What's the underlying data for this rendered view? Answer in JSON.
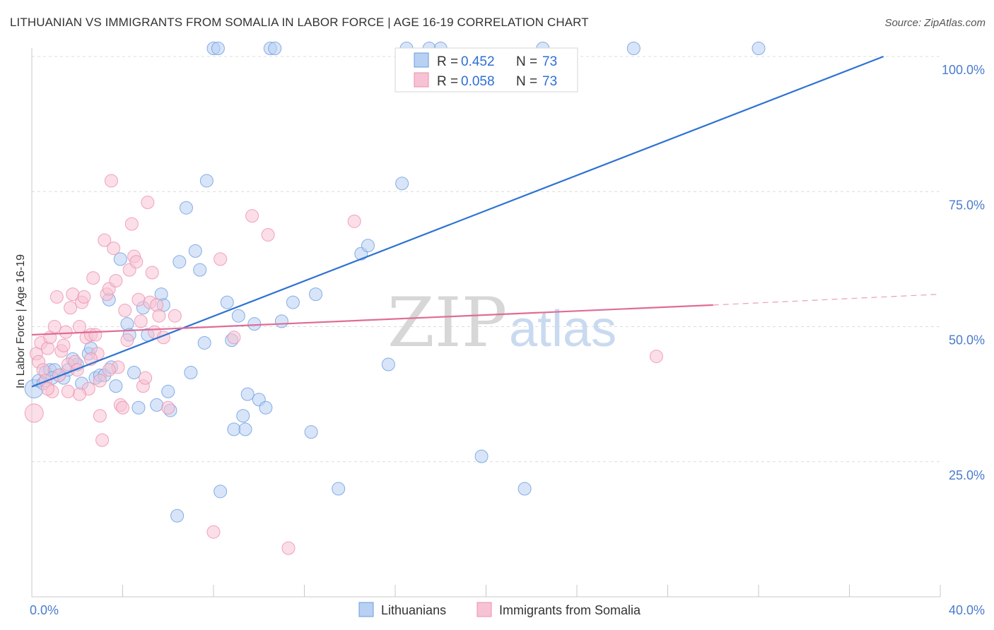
{
  "title": "LITHUANIAN VS IMMIGRANTS FROM SOMALIA IN LABOR FORCE | AGE 16-19 CORRELATION CHART",
  "source": "Source: ZipAtlas.com",
  "chart_data": {
    "type": "scatter",
    "ylabel": "In Labor Force | Age 16-19",
    "xlim": [
      0,
      40
    ],
    "ylim": [
      0,
      105
    ],
    "x_tick_labels": [
      {
        "value": 0,
        "label": "0.0%"
      },
      {
        "value": 40,
        "label": "40.0%"
      }
    ],
    "y_tick_labels": [
      {
        "value": 25,
        "label": "25.0%"
      },
      {
        "value": 50,
        "label": "50.0%"
      },
      {
        "value": 75,
        "label": "75.0%"
      },
      {
        "value": 100,
        "label": "100.0%"
      }
    ],
    "legend": [
      {
        "r_label": "R = ",
        "r_value": "0.452",
        "n_label": "N = ",
        "n_value": "73"
      },
      {
        "r_label": "R = ",
        "r_value": "0.058",
        "n_label": "N = ",
        "n_value": "73"
      }
    ],
    "watermark": {
      "zip": "ZIP",
      "atlas": "atlas"
    },
    "series": [
      {
        "name": "Lithuanians",
        "color": "#6a9be0",
        "fill": "#b8d0f2",
        "trend": {
          "x": [
            0,
            37.5
          ],
          "y": [
            38.9,
            100
          ]
        },
        "points": [
          [
            0.1,
            38.5
          ],
          [
            0.3,
            40
          ],
          [
            0.5,
            39.5
          ],
          [
            0.6,
            41.5
          ],
          [
            0.8,
            42
          ],
          [
            1.0,
            42
          ],
          [
            1.2,
            41
          ],
          [
            1.4,
            40.5
          ],
          [
            1.6,
            42
          ],
          [
            2.0,
            43
          ],
          [
            2.2,
            39.5
          ],
          [
            2.5,
            45
          ],
          [
            2.6,
            46
          ],
          [
            2.8,
            40.5
          ],
          [
            3.0,
            41
          ],
          [
            3.2,
            41
          ],
          [
            3.4,
            55
          ],
          [
            3.5,
            42.5
          ],
          [
            3.7,
            39
          ],
          [
            3.9,
            62.5
          ],
          [
            4.2,
            50.5
          ],
          [
            4.3,
            48.5
          ],
          [
            4.5,
            41.5
          ],
          [
            4.7,
            35
          ],
          [
            4.9,
            53.5
          ],
          [
            5.1,
            48.5
          ],
          [
            5.5,
            35.5
          ],
          [
            5.7,
            56
          ],
          [
            5.8,
            54
          ],
          [
            6.0,
            38
          ],
          [
            6.1,
            34.5
          ],
          [
            6.5,
            62
          ],
          [
            6.8,
            72
          ],
          [
            7.0,
            41.5
          ],
          [
            7.2,
            64
          ],
          [
            7.4,
            60.5
          ],
          [
            7.6,
            47
          ],
          [
            7.7,
            77
          ],
          [
            8.0,
            101.5
          ],
          [
            8.2,
            101.5
          ],
          [
            8.3,
            19.5
          ],
          [
            8.6,
            54.5
          ],
          [
            8.8,
            47.5
          ],
          [
            8.9,
            31
          ],
          [
            9.1,
            52
          ],
          [
            9.3,
            33.5
          ],
          [
            9.4,
            31
          ],
          [
            9.5,
            37.5
          ],
          [
            9.8,
            50.5
          ],
          [
            10.0,
            36.5
          ],
          [
            10.3,
            35
          ],
          [
            10.5,
            101.5
          ],
          [
            10.7,
            101.5
          ],
          [
            11.0,
            51
          ],
          [
            11.5,
            54.5
          ],
          [
            12.3,
            30.5
          ],
          [
            12.5,
            56
          ],
          [
            13.5,
            20
          ],
          [
            14.5,
            63.5
          ],
          [
            14.8,
            65
          ],
          [
            15.7,
            43
          ],
          [
            16.3,
            76.5
          ],
          [
            16.5,
            101.5
          ],
          [
            17.5,
            101.5
          ],
          [
            18.0,
            101.5
          ],
          [
            19.8,
            26
          ],
          [
            21.7,
            20
          ],
          [
            22.5,
            101.5
          ],
          [
            26.5,
            101.5
          ],
          [
            32.0,
            101.5
          ],
          [
            6.4,
            15
          ],
          [
            1.8,
            44
          ],
          [
            0.9,
            40.5
          ]
        ]
      },
      {
        "name": "Immigrants from Somalia",
        "color": "#ec8fad",
        "fill": "#f7c3d4",
        "trend": {
          "x": [
            0,
            30
          ],
          "y": [
            48.5,
            54
          ]
        },
        "trend_dashed": {
          "x": [
            30,
            40
          ],
          "y": [
            54,
            56
          ]
        },
        "points": [
          [
            0.1,
            34
          ],
          [
            0.2,
            45
          ],
          [
            0.3,
            43.5
          ],
          [
            0.4,
            47
          ],
          [
            0.5,
            42
          ],
          [
            0.6,
            40
          ],
          [
            0.7,
            46
          ],
          [
            0.8,
            48
          ],
          [
            0.9,
            38
          ],
          [
            1.0,
            50
          ],
          [
            1.1,
            55.5
          ],
          [
            1.2,
            41
          ],
          [
            1.3,
            45.5
          ],
          [
            1.4,
            46.5
          ],
          [
            1.5,
            49
          ],
          [
            1.6,
            43
          ],
          [
            1.7,
            53.5
          ],
          [
            1.8,
            56
          ],
          [
            1.9,
            43.5
          ],
          [
            2.0,
            42
          ],
          [
            2.1,
            50
          ],
          [
            2.2,
            54.5
          ],
          [
            2.3,
            55.5
          ],
          [
            2.4,
            48
          ],
          [
            2.5,
            38.5
          ],
          [
            2.6,
            48.5
          ],
          [
            2.7,
            59
          ],
          [
            2.8,
            48.5
          ],
          [
            2.9,
            45
          ],
          [
            3.0,
            33.5
          ],
          [
            3.1,
            29
          ],
          [
            3.2,
            66
          ],
          [
            3.3,
            56
          ],
          [
            3.4,
            57
          ],
          [
            3.5,
            77
          ],
          [
            3.6,
            64.5
          ],
          [
            3.7,
            58.5
          ],
          [
            3.8,
            42.5
          ],
          [
            3.9,
            35.5
          ],
          [
            4.0,
            35
          ],
          [
            4.1,
            53
          ],
          [
            4.2,
            47.5
          ],
          [
            4.3,
            60.5
          ],
          [
            4.4,
            69
          ],
          [
            4.5,
            63
          ],
          [
            4.6,
            62
          ],
          [
            4.7,
            55
          ],
          [
            4.8,
            51
          ],
          [
            4.9,
            39
          ],
          [
            5.0,
            40.5
          ],
          [
            5.1,
            73
          ],
          [
            5.2,
            54.5
          ],
          [
            5.3,
            60
          ],
          [
            5.4,
            49
          ],
          [
            5.5,
            54
          ],
          [
            5.6,
            52
          ],
          [
            6.0,
            35
          ],
          [
            6.3,
            52
          ],
          [
            8.0,
            12
          ],
          [
            8.3,
            62.5
          ],
          [
            8.9,
            48
          ],
          [
            9.7,
            70.5
          ],
          [
            10.4,
            67
          ],
          [
            11.3,
            9
          ],
          [
            14.2,
            69.5
          ],
          [
            27.5,
            44.5
          ],
          [
            2.1,
            37.5
          ],
          [
            3.0,
            40
          ],
          [
            3.4,
            42
          ],
          [
            5.8,
            48
          ],
          [
            1.6,
            38
          ],
          [
            0.7,
            38.5
          ],
          [
            2.6,
            44
          ]
        ]
      }
    ]
  }
}
